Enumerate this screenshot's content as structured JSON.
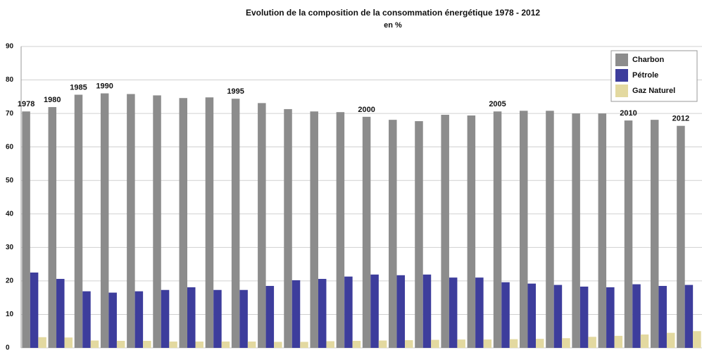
{
  "chart_data": {
    "type": "bar",
    "title": "Evolution de la composition de la consommation énergétique 1978 - 2012",
    "subtitle": "en %",
    "categories": [
      "1978",
      "1980",
      "1985",
      "1990",
      null,
      null,
      null,
      null,
      "1995",
      null,
      null,
      null,
      null,
      "2000",
      null,
      null,
      null,
      null,
      "2005",
      null,
      null,
      null,
      null,
      "2010",
      null,
      "2012"
    ],
    "series": [
      {
        "name": "Charbon",
        "color": "#8c8c8c",
        "values": [
          70.6,
          71.9,
          75.6,
          76.0,
          75.8,
          75.4,
          74.6,
          74.8,
          74.4,
          73.1,
          71.3,
          70.6,
          70.4,
          69.0,
          68.1,
          67.7,
          69.6,
          69.4,
          70.6,
          70.8,
          70.8,
          70.0,
          70.0,
          67.9,
          68.1,
          66.3
        ]
      },
      {
        "name": "Pétrole",
        "color": "#3d3d9c",
        "values": [
          22.5,
          20.6,
          16.9,
          16.5,
          16.9,
          17.3,
          18.1,
          17.3,
          17.3,
          18.5,
          20.2,
          20.6,
          21.3,
          21.9,
          21.7,
          21.9,
          21.0,
          21.0,
          19.6,
          19.2,
          18.8,
          18.3,
          18.1,
          19.0,
          18.5,
          18.8
        ]
      },
      {
        "name": "Gaz Naturel",
        "color": "#e3d9a0",
        "values": [
          3.2,
          3.1,
          2.2,
          2.1,
          2.1,
          1.9,
          1.9,
          1.9,
          1.9,
          1.8,
          1.8,
          2.0,
          2.1,
          2.2,
          2.3,
          2.4,
          2.5,
          2.5,
          2.6,
          2.7,
          2.9,
          3.3,
          3.6,
          4.0,
          4.5,
          5.0
        ]
      }
    ],
    "ylim": [
      0,
      90
    ],
    "yticks": [
      0,
      10,
      20,
      30,
      40,
      50,
      60,
      70,
      80,
      90
    ],
    "grid": true,
    "legend": "top-right"
  }
}
